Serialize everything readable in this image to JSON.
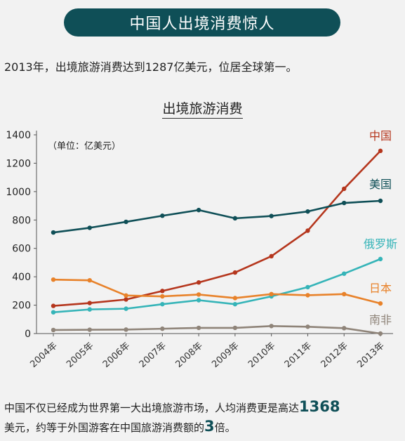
{
  "banner": {
    "title": "中国人出境消费惊人"
  },
  "intro": "2013年，出境旅游消费达到1287亿美元，位居全球第一。",
  "chart_data": {
    "type": "line",
    "title": "出境旅游消费",
    "unit_note": "（单位：亿美元）",
    "categories": [
      "2004年",
      "2005年",
      "2006年",
      "2007年",
      "2008年",
      "2009年",
      "2010年",
      "2011年",
      "2012年",
      "2013年"
    ],
    "ylim": [
      0,
      1400
    ],
    "yticks": [
      0,
      200,
      400,
      600,
      800,
      1000,
      1200,
      1400
    ],
    "grid": false,
    "legend": "end-of-line labels",
    "series": [
      {
        "name": "中国",
        "color": "#b5361d",
        "values": [
          195,
          215,
          240,
          300,
          360,
          430,
          545,
          725,
          1020,
          1287
        ]
      },
      {
        "name": "美国",
        "color": "#0f4f57",
        "values": [
          712,
          745,
          787,
          830,
          870,
          812,
          828,
          860,
          920,
          935
        ]
      },
      {
        "name": "俄罗斯",
        "color": "#35b4b8",
        "values": [
          150,
          170,
          175,
          207,
          235,
          207,
          262,
          327,
          422,
          525
        ]
      },
      {
        "name": "日本",
        "color": "#e8822a",
        "values": [
          380,
          375,
          268,
          262,
          275,
          250,
          278,
          270,
          278,
          212
        ]
      },
      {
        "name": "南非",
        "color": "#8f8479",
        "values": [
          25,
          27,
          28,
          34,
          40,
          40,
          53,
          48,
          38,
          0
        ]
      }
    ]
  },
  "footer": {
    "part1": "中国不仅已经成为世界第一大出境旅游市场，人均消费更是高达",
    "value1": "1368",
    "part2": "美元，约等于外国游客在中国旅游消费额的",
    "value2": "3",
    "part3": "倍。"
  }
}
